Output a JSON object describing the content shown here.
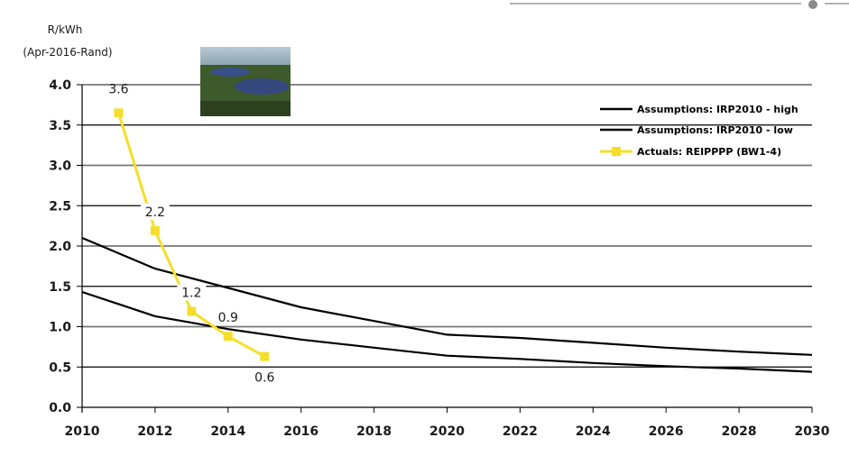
{
  "chart_data": {
    "type": "line",
    "title": "",
    "ylabel_line1": "R/kWh",
    "ylabel_line2": "(Apr-2016-Rand)",
    "xlabel": "",
    "xlim": [
      2010,
      2030
    ],
    "ylim": [
      0,
      4.0
    ],
    "x_ticks": [
      "2010",
      "2012",
      "2014",
      "2016",
      "2018",
      "2020",
      "2022",
      "2024",
      "2026",
      "2028",
      "2030"
    ],
    "y_ticks": [
      "0.0",
      "0.5",
      "1.0",
      "1.5",
      "2.0",
      "2.5",
      "3.0",
      "3.5",
      "4.0"
    ],
    "grid": true,
    "legend_position": "top-right",
    "series": [
      {
        "name": "Assumptions: IRP2010 - high",
        "color": "#000000",
        "x": [
          2010,
          2012,
          2014,
          2016,
          2018,
          2020,
          2022,
          2024,
          2026,
          2028,
          2030
        ],
        "y": [
          2.1,
          1.72,
          1.48,
          1.24,
          1.07,
          0.9,
          0.86,
          0.8,
          0.74,
          0.69,
          0.65
        ]
      },
      {
        "name": "Assumptions: IRP2010 - low",
        "color": "#000000",
        "x": [
          2010,
          2012,
          2014,
          2016,
          2018,
          2020,
          2022,
          2024,
          2026,
          2028,
          2030
        ],
        "y": [
          1.43,
          1.13,
          0.97,
          0.84,
          0.74,
          0.64,
          0.6,
          0.55,
          0.51,
          0.48,
          0.44
        ]
      },
      {
        "name": "Actuals: REIPPPP (BW1-4)",
        "color": "#F5DE2B",
        "marker": "square",
        "x": [
          2011,
          2012,
          2013,
          2014,
          2015
        ],
        "y": [
          3.65,
          2.19,
          1.19,
          0.88,
          0.63
        ],
        "labels": [
          "3.6",
          "2.2",
          "1.2",
          "0.9",
          "0.6"
        ]
      }
    ]
  },
  "decor": {
    "photo": "solar-farm-photo"
  }
}
